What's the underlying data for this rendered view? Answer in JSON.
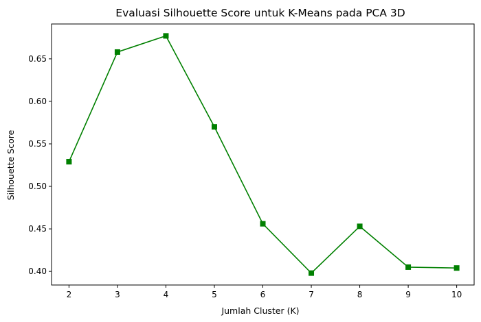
{
  "chart_data": {
    "type": "line",
    "title": "Evaluasi Silhouette Score untuk K-Means pada PCA 3D",
    "xlabel": "Jumlah Cluster (K)",
    "ylabel": "Silhouette Score",
    "x": [
      2,
      3,
      4,
      5,
      6,
      7,
      8,
      9,
      10
    ],
    "series": [
      {
        "name": "Silhouette Score",
        "values": [
          0.529,
          0.658,
          0.677,
          0.57,
          0.456,
          0.398,
          0.453,
          0.405,
          0.404
        ],
        "color": "#008000",
        "marker": "square"
      }
    ],
    "xlim": [
      1.64,
      10.36
    ],
    "ylim": [
      0.384,
      0.691
    ],
    "xticks": [
      "2",
      "3",
      "4",
      "5",
      "6",
      "7",
      "8",
      "9",
      "10"
    ],
    "yticks": [
      "0.40",
      "0.45",
      "0.50",
      "0.55",
      "0.60",
      "0.65"
    ],
    "grid": false,
    "legend": "none"
  }
}
